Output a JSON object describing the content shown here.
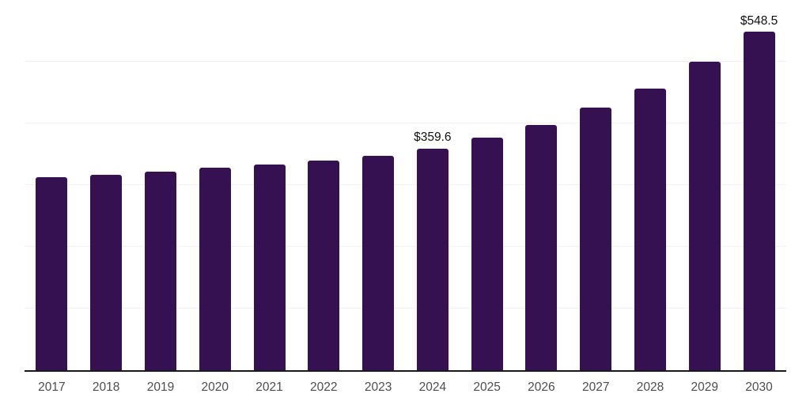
{
  "chart_data": {
    "type": "bar",
    "title": "",
    "xlabel": "",
    "ylabel": "",
    "categories": [
      "2017",
      "2018",
      "2019",
      "2020",
      "2021",
      "2022",
      "2023",
      "2024",
      "2025",
      "2026",
      "2027",
      "2028",
      "2029",
      "2030"
    ],
    "values": [
      312.9,
      316.7,
      322.4,
      328.7,
      333.0,
      339.4,
      348.0,
      359.6,
      376.5,
      398.0,
      425.5,
      456.8,
      499.5,
      548.5
    ],
    "data_labels": {
      "2024": "$359.6",
      "2030": "$548.5"
    },
    "ylim": [
      0,
      600
    ],
    "grid_step": 100,
    "grid": true,
    "legend_position": "none",
    "colors": {
      "bar": "#351151",
      "axis_line": "#1a1a1a",
      "gridline": "#f2f2f2",
      "tick_label": "#4d4d4d",
      "value_label": "#111111",
      "background": "#ffffff"
    }
  }
}
